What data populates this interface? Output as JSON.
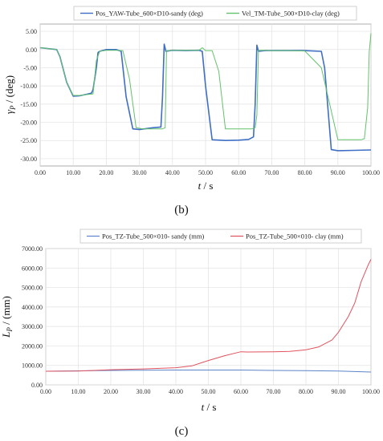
{
  "chart_data": [
    {
      "type": "line",
      "panel_label": "(b)",
      "xlabel": "t / s",
      "ylabel": "γP / (deg)",
      "ylabel_main": "γ",
      "ylabel_sub": "P",
      "ylabel_rest": " / (deg)",
      "xlabel_var": "t",
      "xlabel_unit": " / s",
      "xlim": [
        0,
        100
      ],
      "ylim": [
        -32,
        7
      ],
      "x_ticks": [
        "0.00",
        "10.00",
        "20.00",
        "30.00",
        "40.00",
        "50.00",
        "60.00",
        "70.00",
        "80.00",
        "90.00",
        "100.00"
      ],
      "y_ticks": [
        "5.00",
        "0.00",
        "-5.00",
        "-10.00",
        "-15.00",
        "-20.00",
        "-25.00",
        "-30.00"
      ],
      "y_tick_values": [
        5,
        0,
        -5,
        -10,
        -15,
        -20,
        -25,
        -30
      ],
      "grid": true,
      "legend_position": "top",
      "series": [
        {
          "name": "Pos_YAW-Tube_600×D10-sandy (deg)",
          "color": "#3f6fc4",
          "x": [
            0,
            5,
            6,
            8,
            10,
            12,
            14,
            15.5,
            16,
            17,
            17.5,
            18,
            20,
            23,
            24.5,
            26,
            28,
            30,
            34,
            36.5,
            37,
            37.5,
            38,
            40,
            44,
            48,
            49,
            50,
            52,
            56,
            60,
            63,
            64.5,
            65,
            65.5,
            66,
            68,
            70,
            75,
            80,
            85,
            86,
            88,
            90,
            95,
            100
          ],
          "y": [
            0.5,
            0,
            -2,
            -9,
            -12.8,
            -12.7,
            -12.3,
            -12,
            -11,
            -5,
            -0.8,
            -0.5,
            0,
            0,
            -0.5,
            -13,
            -21.8,
            -22,
            -21.5,
            -21.3,
            -13,
            1.5,
            -0.5,
            -0.2,
            -0.3,
            -0.2,
            -0.5,
            -10,
            -24.8,
            -25,
            -24.9,
            -24.7,
            -24,
            -15,
            1.2,
            -0.5,
            -0.3,
            -0.3,
            -0.3,
            -0.3,
            -0.5,
            -5,
            -27.5,
            -27.8,
            -27.7,
            -27.6
          ]
        },
        {
          "name": "Vel_TM-Tube_500×D10-clay (deg)",
          "color": "#63c26b",
          "x": [
            0,
            5,
            6,
            8,
            10,
            12,
            14,
            16,
            17,
            18,
            20,
            23,
            25,
            27,
            29,
            31,
            34,
            37,
            37.8,
            38.2,
            40,
            44,
            48,
            49,
            50,
            52,
            54,
            56,
            60,
            64,
            65,
            65.5,
            66,
            68,
            70,
            75,
            80,
            85,
            90,
            95,
            97,
            98,
            99,
            99.5,
            100
          ],
          "y": [
            0.5,
            0,
            -2,
            -9,
            -12.6,
            -12.6,
            -12.4,
            -12.2,
            -3,
            -0.5,
            -0.2,
            -0.2,
            -0.3,
            -8,
            -21.5,
            -21.8,
            -21.8,
            -21.8,
            -21.5,
            -0.3,
            -0.2,
            -0.2,
            -0.2,
            0.5,
            -0.3,
            -0.3,
            -6,
            -21.8,
            -21.8,
            -21.8,
            -21.5,
            -18,
            -0.2,
            -0.2,
            -0.3,
            -0.3,
            -0.4,
            -5,
            -24.8,
            -24.8,
            -24.8,
            -24.5,
            -16,
            -0.5,
            4.5
          ]
        }
      ]
    },
    {
      "type": "line",
      "panel_label": "(c)",
      "xlabel": "t / s",
      "ylabel": "LP / (mm)",
      "ylabel_main": "L",
      "ylabel_sub": "P",
      "ylabel_rest": " / (mm)",
      "xlabel_var": "t",
      "xlabel_unit": " / s",
      "xlim": [
        0,
        100
      ],
      "ylim": [
        0,
        7000
      ],
      "x_ticks": [
        "0.00",
        "10.00",
        "20.00",
        "30.00",
        "40.00",
        "50.00",
        "60.00",
        "70.00",
        "80.00",
        "90.00",
        "100.00"
      ],
      "y_ticks": [
        "7000.00",
        "6000.00",
        "5000.00",
        "4000.00",
        "3000.00",
        "2000.00",
        "1000.00",
        "0.00"
      ],
      "y_tick_values": [
        7000,
        6000,
        5000,
        4000,
        3000,
        2000,
        1000,
        0
      ],
      "grid": true,
      "legend_position": "top",
      "series": [
        {
          "name": "Pos_TZ-Tube_500×010- sandy (mm)",
          "color": "#5b85c8",
          "x": [
            0,
            10,
            20,
            30,
            40,
            50,
            60,
            70,
            80,
            90,
            100
          ],
          "y": [
            700,
            720,
            740,
            750,
            760,
            760,
            760,
            740,
            730,
            710,
            660
          ]
        },
        {
          "name": "Pos_TZ-Tube_500×010- clay (mm)",
          "color": "#e0535e",
          "x": [
            0,
            10,
            15,
            20,
            30,
            40,
            45,
            50,
            55,
            60,
            62,
            70,
            75,
            80,
            84,
            88,
            90,
            93,
            95,
            97,
            99,
            100
          ],
          "y": [
            700,
            710,
            740,
            780,
            820,
            880,
            980,
            1250,
            1500,
            1700,
            1690,
            1700,
            1720,
            1800,
            1950,
            2300,
            2700,
            3500,
            4200,
            5300,
            6100,
            6450
          ]
        }
      ]
    }
  ]
}
